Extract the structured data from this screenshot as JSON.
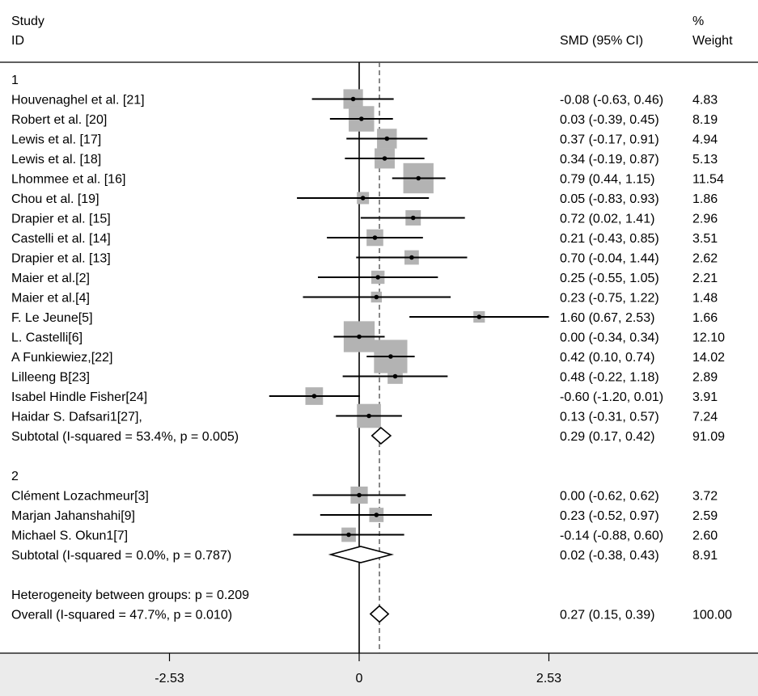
{
  "chart_data": {
    "type": "forest",
    "header": {
      "study_line1": "Study",
      "study_line2": "ID",
      "effect_label": "SMD (95% CI)",
      "weight_line1": "%",
      "weight_line2": "Weight"
    },
    "x_ticks": [
      {
        "value": -2.53,
        "label": "-2.53"
      },
      {
        "value": 0,
        "label": "0"
      },
      {
        "value": 2.53,
        "label": "2.53"
      }
    ],
    "xlim": [
      -4.78,
      5.29
    ],
    "null_line": 0,
    "overall_line": 0.27,
    "groups": [
      {
        "label": "1",
        "studies": [
          {
            "name": "Houvenaghel et al. [21]",
            "est": -0.08,
            "lo": -0.63,
            "hi": 0.46,
            "ci_text": "-0.08 (-0.63, 0.46)",
            "weight": 4.83,
            "weight_text": "4.83"
          },
          {
            "name": "Robert et al. [20]",
            "est": 0.03,
            "lo": -0.39,
            "hi": 0.45,
            "ci_text": "0.03 (-0.39, 0.45)",
            "weight": 8.19,
            "weight_text": "8.19"
          },
          {
            "name": "Lewis et al. [17]",
            "est": 0.37,
            "lo": -0.17,
            "hi": 0.91,
            "ci_text": "0.37 (-0.17, 0.91)",
            "weight": 4.94,
            "weight_text": "4.94"
          },
          {
            "name": "Lewis et al. [18]",
            "est": 0.34,
            "lo": -0.19,
            "hi": 0.87,
            "ci_text": "0.34 (-0.19, 0.87)",
            "weight": 5.13,
            "weight_text": "5.13"
          },
          {
            "name": "Lhommee et al. [16]",
            "est": 0.79,
            "lo": 0.44,
            "hi": 1.15,
            "ci_text": "0.79 (0.44, 1.15)",
            "weight": 11.54,
            "weight_text": "11.54"
          },
          {
            "name": "Chou et al. [19]",
            "est": 0.05,
            "lo": -0.83,
            "hi": 0.93,
            "ci_text": "0.05 (-0.83, 0.93)",
            "weight": 1.86,
            "weight_text": "1.86"
          },
          {
            "name": "Drapier et al. [15]",
            "est": 0.72,
            "lo": 0.02,
            "hi": 1.41,
            "ci_text": "0.72 (0.02, 1.41)",
            "weight": 2.96,
            "weight_text": "2.96"
          },
          {
            "name": "Castelli et al. [14]",
            "est": 0.21,
            "lo": -0.43,
            "hi": 0.85,
            "ci_text": "0.21 (-0.43, 0.85)",
            "weight": 3.51,
            "weight_text": "3.51"
          },
          {
            "name": "Drapier et al. [13]",
            "est": 0.7,
            "lo": -0.04,
            "hi": 1.44,
            "ci_text": "0.70 (-0.04, 1.44)",
            "weight": 2.62,
            "weight_text": "2.62"
          },
          {
            "name": "Maier et al.[2]",
            "est": 0.25,
            "lo": -0.55,
            "hi": 1.05,
            "ci_text": "0.25 (-0.55, 1.05)",
            "weight": 2.21,
            "weight_text": "2.21"
          },
          {
            "name": "Maier et al.[4]",
            "est": 0.23,
            "lo": -0.75,
            "hi": 1.22,
            "ci_text": "0.23 (-0.75, 1.22)",
            "weight": 1.48,
            "weight_text": "1.48"
          },
          {
            "name": "F. Le Jeune[5]",
            "est": 1.6,
            "lo": 0.67,
            "hi": 2.53,
            "ci_text": "1.60 (0.67, 2.53)",
            "weight": 1.66,
            "weight_text": "1.66"
          },
          {
            "name": "L. Castelli[6]",
            "est": 0.0,
            "lo": -0.34,
            "hi": 0.34,
            "ci_text": "0.00 (-0.34, 0.34)",
            "weight": 12.1,
            "weight_text": "12.10"
          },
          {
            "name": "A Funkiewiez,[22]",
            "est": 0.42,
            "lo": 0.1,
            "hi": 0.74,
            "ci_text": "0.42 (0.10, 0.74)",
            "weight": 14.02,
            "weight_text": "14.02"
          },
          {
            "name": "Lilleeng B[23]",
            "est": 0.48,
            "lo": -0.22,
            "hi": 1.18,
            "ci_text": "0.48 (-0.22, 1.18)",
            "weight": 2.89,
            "weight_text": "2.89"
          },
          {
            "name": "Isabel Hindle Fisher[24]",
            "est": -0.6,
            "lo": -1.2,
            "hi": 0.01,
            "ci_text": "-0.60 (-1.20, 0.01)",
            "weight": 3.91,
            "weight_text": "3.91"
          },
          {
            "name": "Haidar S. Dafsari1[27],",
            "est": 0.13,
            "lo": -0.31,
            "hi": 0.57,
            "ci_text": "0.13 (-0.31, 0.57)",
            "weight": 7.24,
            "weight_text": "7.24"
          }
        ],
        "subtotal": {
          "label": "Subtotal  (I-squared = 53.4%, p = 0.005)",
          "est": 0.29,
          "lo": 0.17,
          "hi": 0.42,
          "ci_text": "0.29 (0.17, 0.42)",
          "weight_text": "91.09"
        }
      },
      {
        "label": "2",
        "studies": [
          {
            "name": "Clément Lozachmeur[3]",
            "est": 0.0,
            "lo": -0.62,
            "hi": 0.62,
            "ci_text": "0.00 (-0.62, 0.62)",
            "weight": 3.72,
            "weight_text": "3.72"
          },
          {
            "name": "Marjan Jahanshahi[9]",
            "est": 0.23,
            "lo": -0.52,
            "hi": 0.97,
            "ci_text": "0.23 (-0.52, 0.97)",
            "weight": 2.59,
            "weight_text": "2.59"
          },
          {
            "name": "Michael S. Okun1[7]",
            "est": -0.14,
            "lo": -0.88,
            "hi": 0.6,
            "ci_text": "-0.14 (-0.88, 0.60)",
            "weight": 2.6,
            "weight_text": "2.60"
          }
        ],
        "subtotal": {
          "label": "Subtotal  (I-squared = 0.0%, p = 0.787)",
          "est": 0.02,
          "lo": -0.38,
          "hi": 0.43,
          "ci_text": "0.02 (-0.38, 0.43)",
          "weight_text": "8.91"
        }
      }
    ],
    "heterogeneity": "Heterogeneity between groups: p = 0.209",
    "overall": {
      "label": "Overall  (I-squared = 47.7%, p = 0.010)",
      "est": 0.27,
      "lo": 0.15,
      "hi": 0.39,
      "ci_text": "0.27 (0.15, 0.39)",
      "weight_text": "100.00"
    },
    "colors": {
      "box": "#b3b3b3",
      "line": "#000000",
      "axis_band": "#ebebeb",
      "dash": "#555555"
    }
  }
}
